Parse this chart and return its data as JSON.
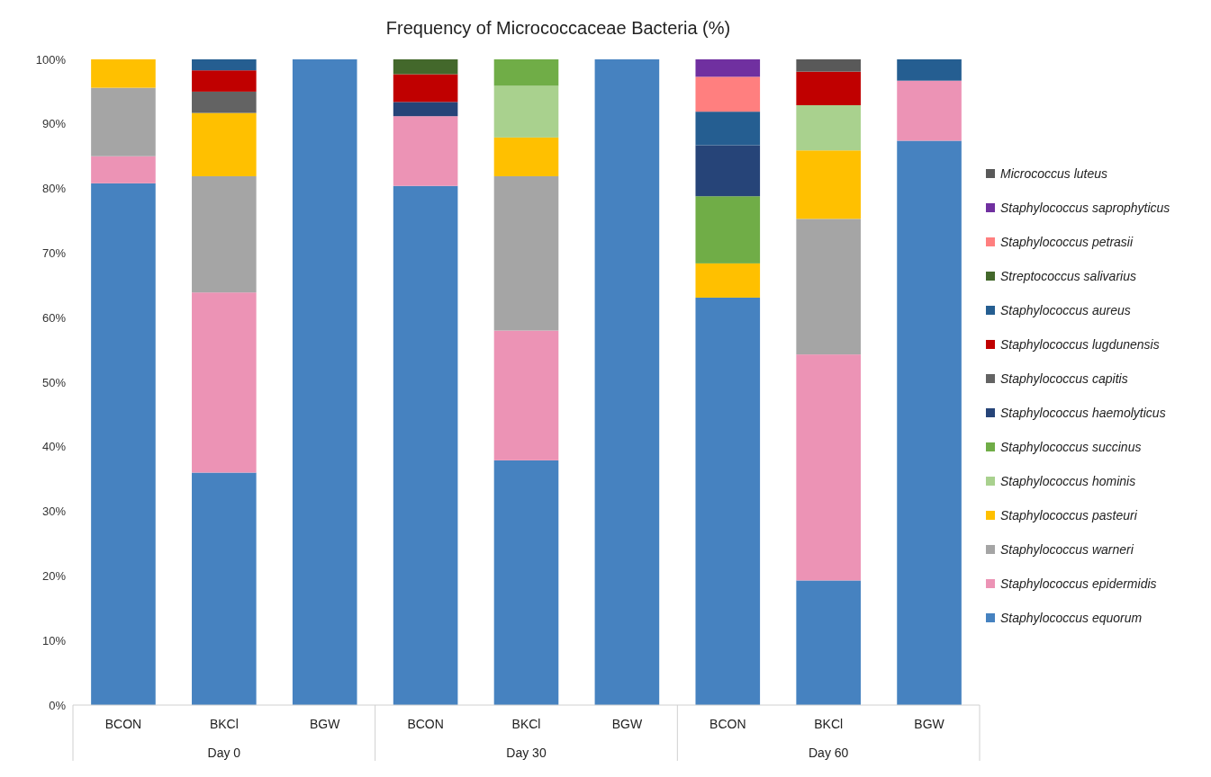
{
  "chart_data": {
    "type": "bar",
    "stacked": true,
    "title": "Frequency of Micrococcaceae Bacteria (%)",
    "categories": [
      "BCON",
      "BKCl",
      "BGW",
      "BCON",
      "BKCl",
      "BGW",
      "BCON",
      "BKCl",
      "BGW"
    ],
    "annotations": [
      "Day 0",
      "Day 30",
      "Day 60"
    ],
    "ylim": [
      0,
      100
    ],
    "yticks": [
      {
        "value": 0,
        "label": "0%"
      },
      {
        "value": 10,
        "label": "10%"
      },
      {
        "value": 20,
        "label": "20%"
      },
      {
        "value": 30,
        "label": "30%"
      },
      {
        "value": 40,
        "label": "40%"
      },
      {
        "value": 50,
        "label": "50%"
      },
      {
        "value": 60,
        "label": "60%"
      },
      {
        "value": 70,
        "label": "70%"
      },
      {
        "value": 80,
        "label": "80%"
      },
      {
        "value": 90,
        "label": "90%"
      },
      {
        "value": 100,
        "label": "100%"
      }
    ],
    "legend": "right",
    "series": [
      {
        "name": "Staphylococcus equorum",
        "color": "#4682c0",
        "values": [
          80.8,
          36,
          100,
          80.4,
          37.9,
          100,
          63.1,
          19.3,
          87.4
        ]
      },
      {
        "name": "Staphylococcus epidermidis",
        "color": "#ec93b5",
        "values": [
          4.2,
          27.9,
          null,
          10.8,
          20.1,
          null,
          null,
          35.0,
          9.3
        ]
      },
      {
        "name": "Staphylococcus warneri",
        "color": "#a5a5a5",
        "values": [
          10.6,
          18.0,
          null,
          null,
          23.9,
          null,
          null,
          21.0,
          null
        ]
      },
      {
        "name": "Staphylococcus pasteuri",
        "color": "#ffc000",
        "values": [
          4.4,
          9.8,
          null,
          null,
          6.0,
          null,
          5.3,
          10.6,
          null
        ]
      },
      {
        "name": "Staphylococcus hominis",
        "color": "#a9d18e",
        "values": [
          null,
          null,
          null,
          null,
          8.0,
          null,
          null,
          7.0,
          null
        ]
      },
      {
        "name": "Staphylococcus succinus",
        "color": "#70ad47",
        "values": [
          null,
          null,
          null,
          null,
          4.1,
          null,
          10.4,
          null,
          null
        ]
      },
      {
        "name": "Staphylococcus haemolyticus",
        "color": "#264478",
        "values": [
          null,
          null,
          null,
          2.2,
          null,
          null,
          7.9,
          null,
          null
        ]
      },
      {
        "name": "Staphylococcus capitis",
        "color": "#636363",
        "values": [
          null,
          3.3,
          null,
          null,
          null,
          null,
          null,
          null,
          null
        ]
      },
      {
        "name": "Staphylococcus lugdunensis",
        "color": "#c00000",
        "values": [
          null,
          3.3,
          null,
          4.3,
          null,
          null,
          null,
          5.2,
          null
        ]
      },
      {
        "name": "Staphylococcus aureus",
        "color": "#255e91",
        "values": [
          null,
          1.7,
          null,
          null,
          null,
          null,
          5.2,
          null,
          3.3
        ]
      },
      {
        "name": "Streptococcus salivarius",
        "color": "#43682b",
        "values": [
          null,
          null,
          null,
          2.3,
          null,
          null,
          null,
          null,
          null
        ]
      },
      {
        "name": "Staphylococcus petrasii",
        "color": "#ff7f7f",
        "values": [
          null,
          null,
          null,
          null,
          null,
          null,
          5.4,
          null,
          null
        ]
      },
      {
        "name": "Staphylococcus saprophyticus",
        "color": "#7030a0",
        "values": [
          null,
          null,
          null,
          null,
          null,
          null,
          2.7,
          null,
          null
        ]
      },
      {
        "name": "Micrococcus luteus",
        "color": "#595959",
        "values": [
          null,
          null,
          null,
          null,
          null,
          null,
          null,
          1.9,
          null
        ]
      }
    ]
  }
}
